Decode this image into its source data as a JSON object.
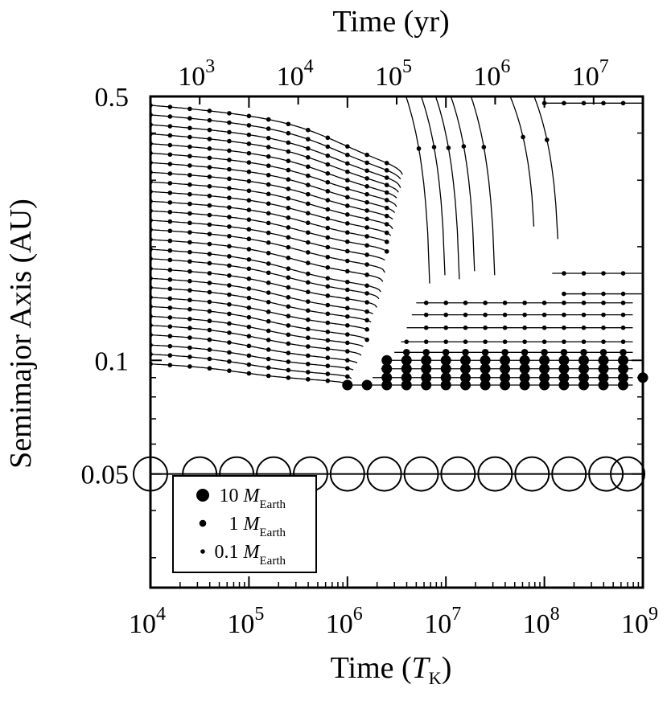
{
  "chart_data": {
    "type": "line",
    "xlabel_main": "Time (",
    "xlabel_italic": "T",
    "xlabel_sub": "K",
    "xlabel_close": ")",
    "xlabel_top": "Time (yr)",
    "ylabel": "Semimajor Axis (AU)",
    "x_log": true,
    "y_log": true,
    "xlim": [
      10000,
      1000000000
    ],
    "ylim": [
      0.025,
      0.5
    ],
    "x_ticks": [
      {
        "base": "10",
        "exp": "4",
        "value": 10000
      },
      {
        "base": "10",
        "exp": "5",
        "value": 100000
      },
      {
        "base": "10",
        "exp": "6",
        "value": 1000000
      },
      {
        "base": "10",
        "exp": "7",
        "value": 10000000
      },
      {
        "base": "10",
        "exp": "8",
        "value": 100000000
      },
      {
        "base": "10",
        "exp": "9",
        "value": 1000000000
      }
    ],
    "x_top_ticks": [
      {
        "base": "10",
        "exp": "3",
        "value": 31623
      },
      {
        "base": "10",
        "exp": "4",
        "value": 316228
      },
      {
        "base": "10",
        "exp": "5",
        "value": 3162278
      },
      {
        "base": "10",
        "exp": "6",
        "value": 31622777
      },
      {
        "base": "10",
        "exp": "7",
        "value": 316227766
      }
    ],
    "y_ticks": [
      {
        "label": "0.5",
        "value": 0.5
      },
      {
        "label": "0.1",
        "value": 0.1
      },
      {
        "label": "0.05",
        "value": 0.05
      }
    ],
    "legend": [
      {
        "size": "large",
        "value": "10",
        "symbol": "M",
        "sub": "Earth"
      },
      {
        "size": "medium",
        "value": "1",
        "symbol": "M",
        "sub": "Earth"
      },
      {
        "size": "small",
        "value": "0.1",
        "symbol": "M",
        "sub": "Earth"
      }
    ],
    "legend_position": "bottom-left",
    "marker_times": [
      10000,
      15800,
      25100,
      39800,
      63100,
      100000,
      158000,
      251000,
      398000,
      631000,
      1000000,
      1580000,
      2510000,
      3980000,
      6310000,
      10000000,
      15800000,
      25100000,
      39800000,
      63100000,
      100000000,
      158000000,
      251000000,
      398000000,
      631000000
    ],
    "central_body": {
      "a": 0.05,
      "times": [
        10000,
        31600,
        75000,
        178000,
        422000,
        1000000,
        2370000,
        5620000,
        13300000,
        31600000,
        75000000,
        178000000,
        422000000,
        700000000
      ]
    },
    "series": [
      {
        "a0": 0.098,
        "t_mig": 90000,
        "a_end": 0.086,
        "t_end": 1000000
      },
      {
        "a0": 0.104,
        "t_mig": 105000,
        "a_end": 0.089,
        "t_end": 1100000
      },
      {
        "a0": 0.11,
        "t_mig": 115000,
        "a_end": 0.093,
        "t_end": 1200000
      },
      {
        "a0": 0.117,
        "t_mig": 130000,
        "a_end": 0.097,
        "t_end": 1300000
      },
      {
        "a0": 0.124,
        "t_mig": 145000,
        "a_end": 0.102,
        "t_end": 1400000
      },
      {
        "a0": 0.131,
        "t_mig": 160000,
        "a_end": 0.107,
        "t_end": 1500000
      },
      {
        "a0": 0.139,
        "t_mig": 175000,
        "a_end": 0.112,
        "t_end": 1600000
      },
      {
        "a0": 0.147,
        "t_mig": 190000,
        "a_end": 0.118,
        "t_end": 1700000
      },
      {
        "a0": 0.156,
        "t_mig": 205000,
        "a_end": 0.124,
        "t_end": 1800000
      },
      {
        "a0": 0.165,
        "t_mig": 225000,
        "a_end": 0.13,
        "t_end": 1900000
      },
      {
        "a0": 0.175,
        "t_mig": 245000,
        "a_end": 0.137,
        "t_end": 2000000
      },
      {
        "a0": 0.186,
        "t_mig": 265000,
        "a_end": 0.144,
        "t_end": 2100000
      },
      {
        "a0": 0.197,
        "t_mig": 285000,
        "a_end": 0.15,
        "t_end": 2200000
      },
      {
        "a0": 0.209,
        "t_mig": 310000,
        "a_end": 0.16,
        "t_end": 2300000
      },
      {
        "a0": 0.222,
        "t_mig": 335000,
        "a_end": 0.17,
        "t_end": 2400000
      },
      {
        "a0": 0.235,
        "t_mig": 360000,
        "a_end": 0.18,
        "t_end": 2500000
      },
      {
        "a0": 0.249,
        "t_mig": 390000,
        "a_end": 0.19,
        "t_end": 2600000
      },
      {
        "a0": 0.264,
        "t_mig": 420000,
        "a_end": 0.2,
        "t_end": 2700000
      },
      {
        "a0": 0.28,
        "t_mig": 455000,
        "a_end": 0.21,
        "t_end": 2800000
      },
      {
        "a0": 0.297,
        "t_mig": 490000,
        "a_end": 0.22,
        "t_end": 2900000
      },
      {
        "a0": 0.315,
        "t_mig": 530000,
        "a_end": 0.23,
        "t_end": 3000000
      },
      {
        "a0": 0.334,
        "t_mig": 570000,
        "a_end": 0.24,
        "t_end": 3100000
      },
      {
        "a0": 0.354,
        "t_mig": 615000,
        "a_end": 0.25,
        "t_end": 3200000
      },
      {
        "a0": 0.375,
        "t_mig": 660000,
        "a_end": 0.26,
        "t_end": 3300000
      },
      {
        "a0": 0.398,
        "t_mig": 710000,
        "a_end": 0.27,
        "t_end": 3400000
      },
      {
        "a0": 0.421,
        "t_mig": 765000,
        "a_end": 0.28,
        "t_end": 3500000
      },
      {
        "a0": 0.447,
        "t_mig": 820000,
        "a_end": 0.29,
        "t_end": 3600000
      },
      {
        "a0": 0.474,
        "t_mig": 880000,
        "a_end": 0.3,
        "t_end": 3700000
      }
    ],
    "settled_bands": [
      {
        "a": 0.086,
        "t_start": 1000000,
        "size": "large"
      },
      {
        "a": 0.09,
        "t_start": 1800000,
        "size": "large"
      },
      {
        "a": 0.095,
        "t_start": 2200000,
        "size": "large"
      },
      {
        "a": 0.1,
        "t_start": 2500000,
        "size": "large"
      },
      {
        "a": 0.105,
        "t_start": 3000000,
        "size": "medium"
      },
      {
        "a": 0.112,
        "t_start": 3500000,
        "size": "small"
      },
      {
        "a": 0.122,
        "t_start": 4000000,
        "size": "small"
      },
      {
        "a": 0.132,
        "t_start": 4500000,
        "size": "small"
      },
      {
        "a": 0.142,
        "t_start": 5000000,
        "size": "small"
      }
    ],
    "late_drops": [
      {
        "t": 7000000,
        "a_end": 0.09
      },
      {
        "t": 10000000,
        "a_end": 0.1
      },
      {
        "t": 14000000,
        "a_end": 0.095
      },
      {
        "t": 20000000,
        "a_end": 0.105
      },
      {
        "t": 32000000,
        "a_end": 0.1
      },
      {
        "t": 80000000,
        "a_end": 0.17
      },
      {
        "t": 140000000,
        "a_end": 0.15
      }
    ],
    "outer_survivors": [
      {
        "a": 0.17,
        "t_start": 120000000,
        "size": "small"
      },
      {
        "a": 0.15,
        "t_start": 150000000,
        "size": "small"
      },
      {
        "a": 0.48,
        "t_start": 100000000,
        "size": "small"
      }
    ]
  }
}
